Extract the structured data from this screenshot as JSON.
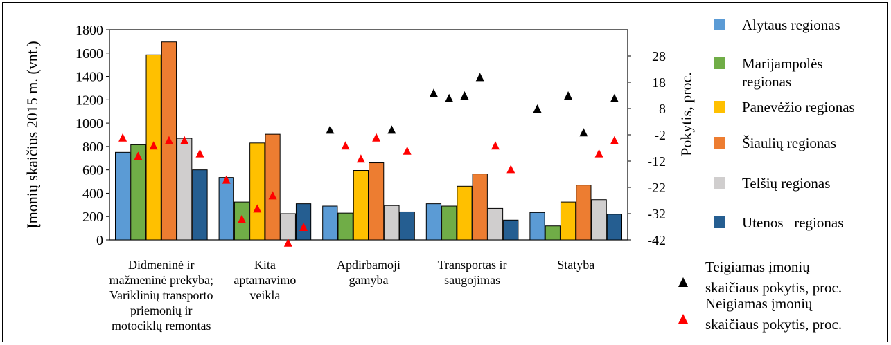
{
  "chart_data": {
    "type": "bar",
    "categories": [
      [
        "Didmeninė ir",
        "mažmeninė prekyba;",
        "Variklinių transporto",
        "priemonių ir",
        "motociklų remontas"
      ],
      [
        "Kita",
        "aptarnavimo",
        "veikla"
      ],
      [
        "Apdirbamoji",
        "gamyba"
      ],
      [
        "Transportas ir",
        "saugojimas"
      ],
      [
        "Statyba"
      ]
    ],
    "ylabel": "Įmonių skaičius 2015 m. (vnt.)",
    "y2label": "Pokytis, proc.",
    "ylim": [
      0,
      1800
    ],
    "y2lim": [
      -42,
      38
    ],
    "yticks": [
      0,
      200,
      400,
      600,
      800,
      1000,
      1200,
      1400,
      1600,
      1800
    ],
    "y2ticks": [
      -42,
      -32,
      -22,
      -12,
      -2,
      8,
      18,
      28
    ],
    "series": [
      {
        "name": "Alytaus regionas",
        "color": "#5b9bd5",
        "values": [
          750,
          535,
          290,
          310,
          235
        ]
      },
      {
        "name": "Marijampolės regionas",
        "color": "#70ad47",
        "values": [
          815,
          325,
          230,
          290,
          120
        ]
      },
      {
        "name": "Panevėžio regionas",
        "color": "#ffc000",
        "values": [
          1585,
          830,
          595,
          460,
          325
        ]
      },
      {
        "name": "Šiaulių regionas",
        "color": "#ed7d31",
        "values": [
          1695,
          905,
          660,
          565,
          470
        ]
      },
      {
        "name": "Telšių regionas",
        "color": "#d0cece",
        "values": [
          870,
          225,
          295,
          270,
          345
        ]
      },
      {
        "name": "Utenos   regionas",
        "color": "#255e91",
        "values": [
          600,
          310,
          240,
          170,
          220
        ]
      }
    ],
    "change_series": [
      {
        "name": "Teigiamas įmonių skaičiaus pokytis, proc.",
        "color": "#000000",
        "points": [
          [
            2,
            0,
            0
          ],
          [
            2,
            4,
            0
          ],
          [
            3,
            0,
            14
          ],
          [
            3,
            1,
            12
          ],
          [
            3,
            2,
            13
          ],
          [
            3,
            3,
            20
          ],
          [
            4,
            0,
            8
          ],
          [
            4,
            2,
            13
          ],
          [
            4,
            3,
            -1
          ],
          [
            4,
            5,
            12
          ]
        ]
      },
      {
        "name": "Neigiamas įmonių skaičiaus pokytis, proc.",
        "color": "#ff0000",
        "points": [
          [
            0,
            0,
            -3
          ],
          [
            0,
            1,
            -10
          ],
          [
            0,
            2,
            -6
          ],
          [
            0,
            3,
            -4
          ],
          [
            0,
            4,
            -4
          ],
          [
            0,
            5,
            -9
          ],
          [
            1,
            0,
            -19
          ],
          [
            1,
            1,
            -34
          ],
          [
            1,
            2,
            -30
          ],
          [
            1,
            3,
            -25
          ],
          [
            1,
            4,
            -43
          ],
          [
            1,
            5,
            -37
          ],
          [
            2,
            1,
            -6
          ],
          [
            2,
            2,
            -11
          ],
          [
            2,
            3,
            -3
          ],
          [
            2,
            5,
            -8
          ],
          [
            3,
            4,
            -6
          ],
          [
            3,
            5,
            -15
          ],
          [
            4,
            4,
            -9
          ],
          [
            4,
            5,
            -4
          ]
        ]
      }
    ],
    "legend_position": "right"
  }
}
